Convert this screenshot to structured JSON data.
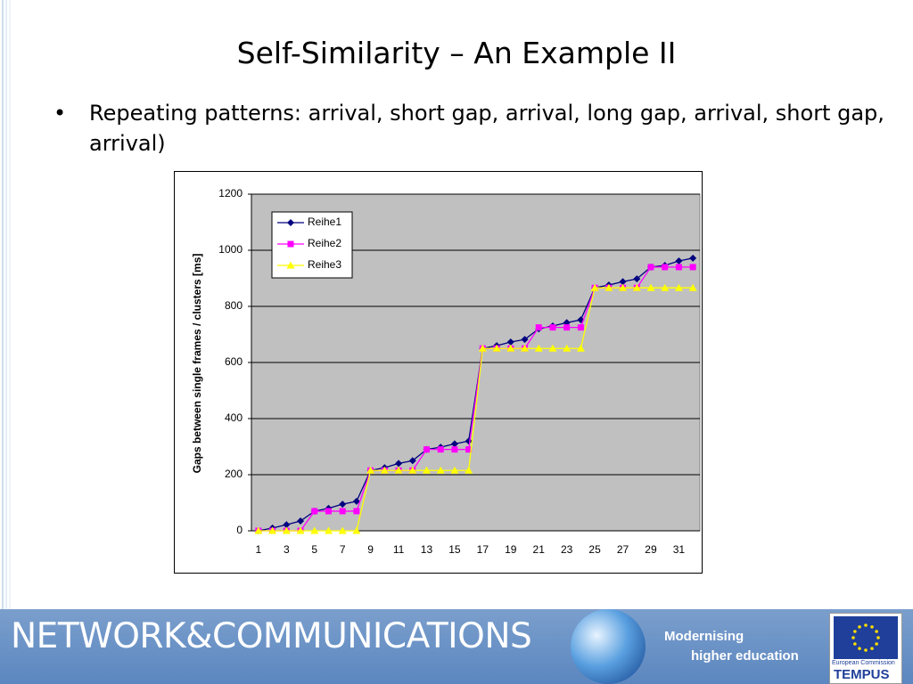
{
  "slide": {
    "title": "Self-Similarity – An Example II",
    "bullet": "Repeating patterns: arrival, short gap, arrival, long gap, arrival, short gap, arrival)",
    "footer": {
      "brand": "NETWORK&COMMUNICATIONS",
      "tagline_1": "Modernising",
      "tagline_2": "higher education",
      "logo_small": "European Commission",
      "logo_name": "TEMPUS"
    }
  },
  "chart_data": {
    "type": "line",
    "y_label": "Gaps between single frames / clusters [ms]",
    "categories": [
      1,
      null,
      3,
      null,
      5,
      null,
      7,
      null,
      9,
      null,
      11,
      null,
      13,
      null,
      15,
      null,
      17,
      null,
      19,
      null,
      21,
      null,
      23,
      null,
      25,
      null,
      27,
      null,
      29,
      null,
      31,
      null
    ],
    "series": [
      {
        "name": "Reihe1",
        "color": "#000080",
        "marker": "diamond",
        "values": [
          0,
          10,
          22,
          35,
          70,
          80,
          95,
          105,
          215,
          225,
          240,
          250,
          290,
          298,
          310,
          320,
          650,
          660,
          673,
          682,
          720,
          730,
          742,
          752,
          866,
          876,
          888,
          898,
          940,
          946,
          962,
          972
        ]
      },
      {
        "name": "Reihe2",
        "color": "#ff00ff",
        "marker": "square",
        "values": [
          0,
          0,
          0,
          0,
          70,
          70,
          70,
          70,
          215,
          215,
          215,
          215,
          290,
          290,
          290,
          290,
          650,
          650,
          650,
          650,
          725,
          725,
          725,
          725,
          866,
          866,
          866,
          866,
          940,
          940,
          940,
          940
        ]
      },
      {
        "name": "Reihe3",
        "color": "#ffff00",
        "marker": "triangle",
        "values": [
          0,
          0,
          0,
          0,
          0,
          0,
          0,
          0,
          215,
          215,
          215,
          215,
          215,
          215,
          215,
          215,
          650,
          650,
          650,
          650,
          650,
          650,
          650,
          650,
          866,
          866,
          866,
          866,
          866,
          866,
          866,
          866
        ]
      }
    ],
    "ylim": [
      0,
      1200
    ],
    "yticks": [
      0,
      200,
      400,
      600,
      800,
      1000,
      1200
    ],
    "grid": true,
    "plot_background": "#c0c0c0",
    "legend_position": "upper left"
  }
}
